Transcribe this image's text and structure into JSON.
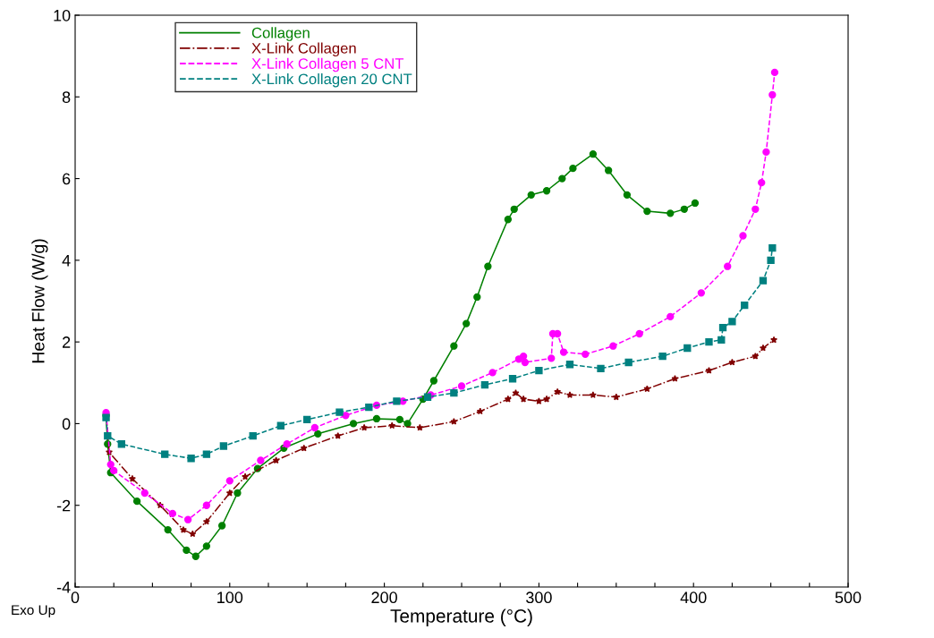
{
  "chart_data": {
    "type": "line",
    "xlabel": "Temperature (°C)",
    "ylabel": "Heat Flow (W/g)",
    "xlim": [
      0,
      500
    ],
    "ylim": [
      -4,
      10
    ],
    "xticks": [
      0,
      {
        "value": 25,
        "label": null
      },
      100,
      {
        "value": 50,
        "label": null
      },
      {
        "value": 75,
        "label": null
      },
      {
        "value": 125,
        "label": null
      },
      {
        "value": 150,
        "label": null
      },
      {
        "value": 175,
        "label": null
      },
      200,
      {
        "value": 225,
        "label": null
      },
      {
        "value": 250,
        "label": null
      },
      {
        "value": 275,
        "label": null
      },
      300,
      {
        "value": 325,
        "label": null
      },
      {
        "value": 350,
        "label": null
      },
      {
        "value": 375,
        "label": null
      },
      400,
      {
        "value": 425,
        "label": null
      },
      {
        "value": 450,
        "label": null
      },
      {
        "value": 475,
        "label": null
      },
      500
    ],
    "yticks": [
      -4,
      -2,
      0,
      2,
      4,
      6,
      8,
      10
    ],
    "grid": false,
    "legend": "top left",
    "annotations": [
      "Exo Up"
    ],
    "series": [
      {
        "name": "Collagen",
        "color": "#008000",
        "marker": "circle",
        "line_style": "solid",
        "x": [
          20,
          21,
          23,
          40,
          60,
          72,
          78,
          85,
          95,
          105,
          118,
          135,
          157,
          180,
          195,
          210,
          215,
          225,
          232,
          245,
          253,
          260,
          267,
          280,
          284,
          295,
          305,
          315,
          322,
          335,
          345,
          357,
          370,
          385,
          394,
          401
        ],
        "values": [
          0.2,
          -0.5,
          -1.2,
          -1.9,
          -2.6,
          -3.1,
          -3.25,
          -3.0,
          -2.5,
          -1.7,
          -1.1,
          -0.6,
          -0.25,
          0.0,
          0.12,
          0.1,
          0.0,
          0.6,
          1.05,
          1.9,
          2.45,
          3.1,
          3.85,
          5.0,
          5.25,
          5.6,
          5.7,
          6.0,
          6.25,
          6.6,
          6.2,
          5.6,
          5.2,
          5.15,
          5.25,
          5.4
        ]
      },
      {
        "name": "X-Link Collagen",
        "color": "#800000",
        "marker": "star",
        "line_style": "dashdot",
        "x": [
          20,
          22,
          37,
          55,
          70,
          76,
          85,
          100,
          110,
          130,
          148,
          170,
          187,
          205,
          223,
          245,
          262,
          280,
          285,
          290,
          300,
          305,
          312,
          320,
          335,
          350,
          370,
          388,
          410,
          425,
          440,
          445,
          452
        ],
        "values": [
          0.25,
          -0.7,
          -1.35,
          -2.0,
          -2.6,
          -2.7,
          -2.4,
          -1.7,
          -1.3,
          -0.9,
          -0.6,
          -0.3,
          -0.1,
          -0.05,
          -0.1,
          0.05,
          0.3,
          0.6,
          0.75,
          0.6,
          0.55,
          0.6,
          0.78,
          0.7,
          0.7,
          0.65,
          0.85,
          1.1,
          1.3,
          1.5,
          1.65,
          1.85,
          2.05
        ]
      },
      {
        "name": "X-Link Collagen 5 CNT",
        "color": "#ff00ff",
        "marker": "circle",
        "line_style": "dashed",
        "x": [
          20,
          23,
          25,
          45,
          63,
          73,
          85,
          100,
          120,
          137,
          155,
          175,
          195,
          212,
          230,
          250,
          270,
          287,
          290,
          291,
          308,
          309,
          312,
          316,
          330,
          348,
          365,
          385,
          405,
          422,
          432,
          440,
          444,
          447,
          451,
          452.5
        ],
        "values": [
          0.27,
          -1.0,
          -1.15,
          -1.7,
          -2.2,
          -2.35,
          -2.0,
          -1.4,
          -0.9,
          -0.5,
          -0.1,
          0.2,
          0.45,
          0.55,
          0.7,
          0.92,
          1.25,
          1.58,
          1.65,
          1.5,
          1.6,
          2.2,
          2.2,
          1.75,
          1.7,
          1.9,
          2.2,
          2.62,
          3.2,
          3.85,
          4.6,
          5.25,
          5.9,
          6.65,
          8.05,
          8.6
        ]
      },
      {
        "name": "X-Link Collagen 20 CNT",
        "color": "#008080",
        "marker": "square",
        "line_style": "dashed",
        "x": [
          20,
          21,
          30,
          58,
          75,
          85,
          96,
          115,
          133,
          150,
          171,
          190,
          208,
          228,
          245,
          265,
          283,
          300,
          320,
          340,
          358,
          380,
          396,
          410,
          418,
          419,
          425,
          433,
          445,
          450,
          451
        ],
        "values": [
          0.15,
          -0.3,
          -0.5,
          -0.75,
          -0.85,
          -0.75,
          -0.55,
          -0.3,
          -0.05,
          0.1,
          0.28,
          0.4,
          0.55,
          0.65,
          0.75,
          0.95,
          1.1,
          1.3,
          1.45,
          1.35,
          1.5,
          1.65,
          1.85,
          2.0,
          2.05,
          2.35,
          2.5,
          2.9,
          3.5,
          4.0,
          4.3
        ]
      }
    ]
  }
}
